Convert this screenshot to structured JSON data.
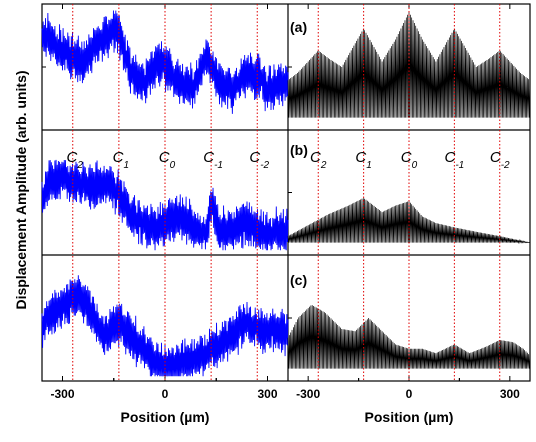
{
  "chart_data": {
    "type": "line",
    "ylabel": "Displacement Amplitude (arb. units)",
    "xlabel": "Position (µm)",
    "xlim": [
      -360,
      360
    ],
    "xticks": [
      "-300",
      "0",
      "300"
    ],
    "ylim": [
      0,
      1
    ],
    "grid": false,
    "marker_positions": [
      -270,
      -135,
      0,
      135,
      270
    ],
    "panels": [
      {
        "label": "(a)",
        "markers": [
          "C_2",
          "C_1",
          "C_0",
          "C_-1",
          "C_-2"
        ],
        "marker_labels_shown": "none",
        "series": [
          {
            "side": "left",
            "color": "#0000ff",
            "x": [
              -360,
              -300,
              -240,
              -180,
              -140,
              -100,
              -60,
              -20,
              0,
              40,
              80,
              120,
              160,
              200,
              240,
              280,
              300,
              340,
              360
            ],
            "y": [
              0.8,
              0.65,
              0.55,
              0.78,
              0.85,
              0.45,
              0.35,
              0.55,
              0.5,
              0.35,
              0.3,
              0.6,
              0.35,
              0.28,
              0.45,
              0.4,
              0.3,
              0.35,
              0.35
            ]
          },
          {
            "side": "right",
            "color": "#000000",
            "x": [
              -360,
              -330,
              -300,
              -270,
              -240,
              -200,
              -135,
              -80,
              -40,
              0,
              40,
              80,
              135,
              200,
              240,
              270,
              300,
              330,
              360
            ],
            "y": [
              0.38,
              0.45,
              0.55,
              0.65,
              0.58,
              0.5,
              0.85,
              0.55,
              0.75,
              1.0,
              0.75,
              0.55,
              0.85,
              0.5,
              0.58,
              0.65,
              0.55,
              0.45,
              0.38
            ]
          }
        ]
      },
      {
        "label": "(b)",
        "markers": [
          "C_2",
          "C_1",
          "C_0",
          "C_-1",
          "C_-2"
        ],
        "marker_labels_shown": "both",
        "series": [
          {
            "side": "left",
            "color": "#0000ff",
            "x": [
              -360,
              -340,
              -300,
              -260,
              -220,
              -180,
              -140,
              -100,
              -60,
              -20,
              0,
              40,
              80,
              120,
              135,
              160,
              200,
              240,
              270,
              300,
              340,
              360
            ],
            "y": [
              0.45,
              0.6,
              0.62,
              0.6,
              0.55,
              0.58,
              0.52,
              0.3,
              0.2,
              0.18,
              0.22,
              0.28,
              0.2,
              0.12,
              0.4,
              0.15,
              0.18,
              0.22,
              0.15,
              0.12,
              0.15,
              0.12
            ]
          },
          {
            "side": "right",
            "color": "#000000",
            "x": [
              -360,
              -300,
              -240,
              -180,
              -135,
              -80,
              -40,
              0,
              40,
              80,
              135,
              200,
              270,
              330,
              360
            ],
            "y": [
              0.1,
              0.2,
              0.3,
              0.38,
              0.45,
              0.32,
              0.38,
              0.42,
              0.28,
              0.22,
              0.18,
              0.14,
              0.1,
              0.06,
              0.04
            ]
          }
        ]
      },
      {
        "label": "(c)",
        "markers": [
          "C_2",
          "C_1",
          "C_0",
          "C_-1",
          "C_-2"
        ],
        "marker_labels_shown": "none",
        "series": [
          {
            "side": "left",
            "color": "#0000ff",
            "x": [
              -360,
              -320,
              -280,
              -250,
              -220,
              -180,
              -135,
              -100,
              -60,
              -20,
              0,
              40,
              80,
              120,
              160,
              200,
              240,
              270,
              300,
              340,
              360
            ],
            "y": [
              0.45,
              0.55,
              0.65,
              0.7,
              0.58,
              0.35,
              0.45,
              0.35,
              0.2,
              0.08,
              0.05,
              0.08,
              0.12,
              0.18,
              0.25,
              0.35,
              0.45,
              0.42,
              0.38,
              0.4,
              0.38
            ]
          },
          {
            "side": "right",
            "color": "#000000",
            "x": [
              -360,
              -330,
              -290,
              -250,
              -200,
              -160,
              -120,
              -80,
              -40,
              0,
              40,
              80,
              135,
              180,
              230,
              270,
              310,
              340,
              360
            ],
            "y": [
              0.32,
              0.5,
              0.62,
              0.55,
              0.4,
              0.38,
              0.5,
              0.38,
              0.26,
              0.22,
              0.22,
              0.18,
              0.26,
              0.18,
              0.24,
              0.3,
              0.28,
              0.22,
              0.16
            ]
          }
        ]
      }
    ]
  }
}
